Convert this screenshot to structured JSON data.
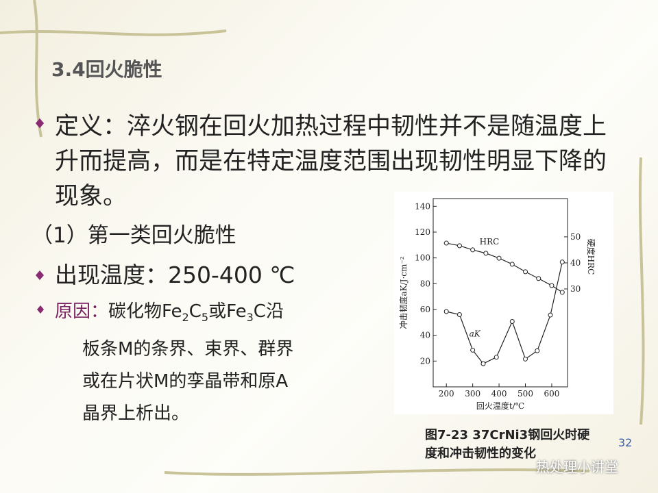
{
  "slide": {
    "title": "3.4回火脆性",
    "definition": "定义：淬火钢在回火加热过程中韧性并不是随温度上升而提高，而是在特定温度范围出现韧性明显下降的现象。",
    "subheading": "（1）第一类回火脆性",
    "temperature": "出现温度：250-400 ℃",
    "cause": {
      "label": "原因：",
      "first_line": [
        "碳化物Fe",
        "2",
        "C",
        "5",
        "或Fe",
        "3",
        "C沿"
      ],
      "lines": [
        "板条M的条界、束界、群界",
        "或在片状M的孪晶带和原A",
        "晶界上析出。"
      ]
    },
    "page_number": "32",
    "watermark": "热处理小讲堂"
  },
  "chart_data": {
    "type": "line",
    "caption": "图7-23 37CrNi3钢回火时硬度和冲击韧性的变化",
    "x_label": "回火温度t/℃",
    "y_label": "冲击韧度aK/J·cm⁻²",
    "y2_label": "硬度HRC",
    "xlim": [
      150,
      660
    ],
    "xticks": [
      200,
      300,
      400,
      500,
      600
    ],
    "ylim": [
      0,
      146
    ],
    "yticks": [
      20,
      40,
      60,
      80,
      100,
      120,
      140
    ],
    "y2lim": [
      -7.6,
      64.7
    ],
    "y2ticks": [
      30,
      40,
      50
    ],
    "series": [
      {
        "name": "HRC",
        "color": "#222222",
        "axis": "y2",
        "x": [
          200,
          250,
          300,
          350,
          400,
          450,
          500,
          550,
          600,
          640
        ],
        "values": [
          47.6,
          46.6,
          45.0,
          43.7,
          41.8,
          39.5,
          36.6,
          34.0,
          31.3,
          28.7
        ]
      },
      {
        "name": "aK",
        "color": "#222222",
        "x": [
          200,
          250,
          300,
          340,
          390,
          450,
          500,
          545,
          595,
          640
        ],
        "values": [
          58.4,
          56,
          28.5,
          18,
          23,
          50.7,
          21.6,
          28,
          55.7,
          96.8
        ]
      }
    ]
  }
}
